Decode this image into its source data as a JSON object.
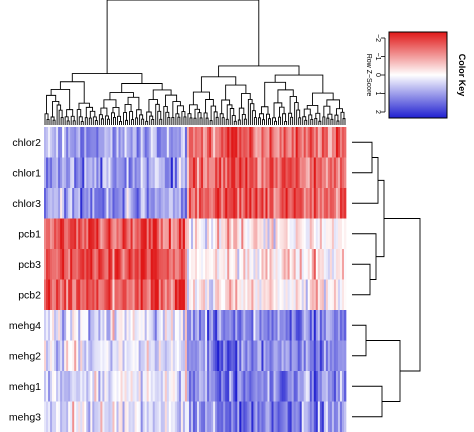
{
  "chart_data": {
    "type": "heatmap",
    "title": "",
    "rows": [
      "chlor2",
      "chlor1",
      "chlor3",
      "pcb1",
      "pcb3",
      "pcb2",
      "mehg4",
      "mehg2",
      "mehg1",
      "mehg3"
    ],
    "row_tree_merges": [
      [
        0,
        1
      ],
      [
        5,
        4
      ],
      [
        8,
        9
      ],
      [
        6,
        7
      ]
    ],
    "column_count": 150,
    "column_split_fraction": 0.47,
    "column_trend": {
      "chlor": [
        -0.9,
        1.3
      ],
      "pcb": [
        1.4,
        0.2
      ],
      "mehg": [
        -0.2,
        -1.1
      ]
    },
    "color_key": {
      "title": "Color Key",
      "axis_label": "Row Z−Score",
      "ticks": [
        "−2",
        "−1",
        "0",
        "1",
        "2"
      ],
      "range": [
        -2,
        2
      ],
      "low_color": "#2020d0",
      "mid_color": "#ffffff",
      "high_color": "#e01818"
    }
  }
}
